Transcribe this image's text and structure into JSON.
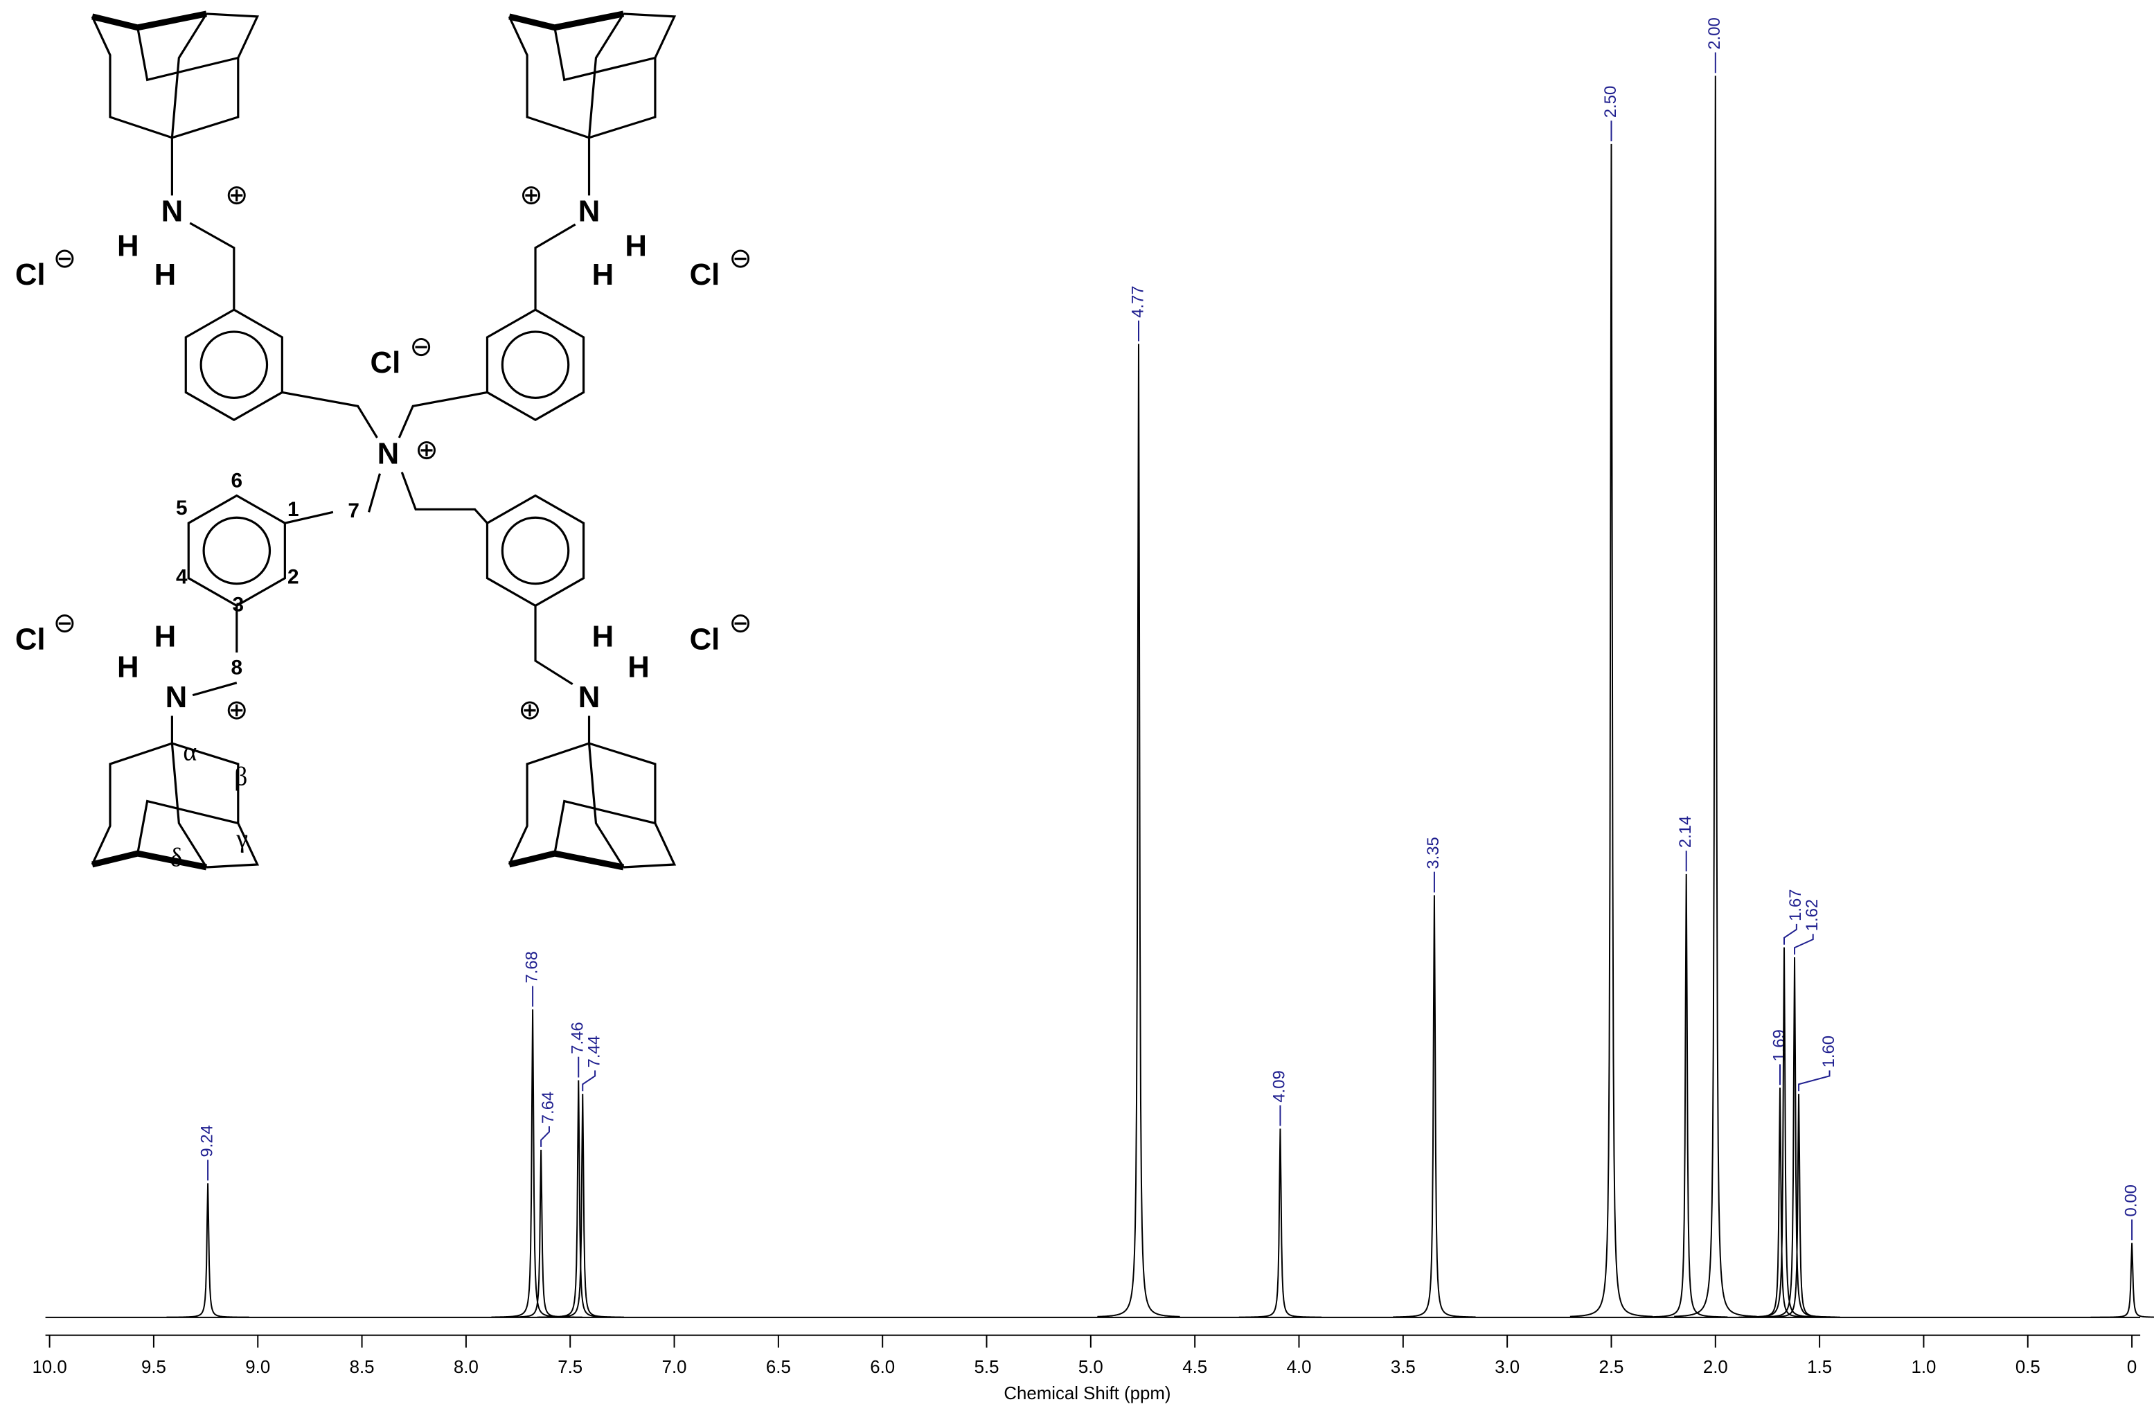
{
  "structure": {
    "chloride": "Cl",
    "nitrogen": "N",
    "hydrogen": "H",
    "cation": "⊕",
    "anion": "⊖",
    "locants": [
      "1",
      "2",
      "3",
      "4",
      "5",
      "6",
      "7",
      "8"
    ],
    "adamantyl_locants": [
      "α",
      "β",
      "γ",
      "δ"
    ]
  },
  "chart_data": {
    "type": "spectrum",
    "x_label": "Chemical Shift (ppm)",
    "x": [
      9.24,
      7.68,
      7.64,
      7.46,
      7.44,
      4.77,
      4.09,
      3.35,
      2.5,
      2.14,
      2.0,
      1.69,
      1.67,
      1.62,
      1.6,
      0.0
    ],
    "x_labels": [
      "9.24",
      "7.68",
      "7.64",
      "7.46",
      "7.44",
      "4.77",
      "4.09",
      "3.35",
      "2.50",
      "2.14",
      "2.00",
      "1.69",
      "1.67",
      "1.62",
      "1.60",
      "0.00"
    ],
    "values": [
      10.8,
      24.8,
      13.5,
      19.1,
      18,
      78.4,
      15.2,
      34,
      94.5,
      35.7,
      100,
      18.5,
      29.8,
      29,
      18,
      6
    ],
    "xlim": [
      10.02,
      -0.04
    ],
    "ylim": [
      0,
      100
    ],
    "xticks": [
      {
        "value": 10,
        "label": "10.0"
      },
      9.5,
      {
        "value": 9,
        "label": "9.0"
      },
      8.5,
      {
        "value": 8,
        "label": "8.0"
      },
      7.5,
      {
        "value": 7,
        "label": "7.0"
      },
      6.5,
      {
        "value": 6,
        "label": "6.0"
      },
      5.5,
      {
        "value": 5,
        "label": "5.0"
      },
      4.5,
      {
        "value": 4,
        "label": "4.0"
      },
      3.5,
      {
        "value": 3,
        "label": "3.0"
      },
      2.5,
      {
        "value": 2,
        "label": "2.0"
      },
      1.5,
      {
        "value": 1,
        "label": "1.0"
      },
      0.5,
      0
    ],
    "color": "#000000",
    "label_color": "#1f1f8f"
  }
}
